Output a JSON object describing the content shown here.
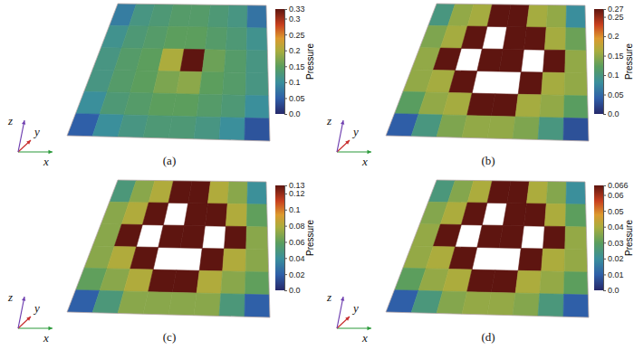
{
  "chart_data": [
    {
      "type": "heatmap",
      "title": "(a)",
      "xlabel": "x",
      "ylabel": "y",
      "zlabel": "z",
      "cells": [
        [
          0.08,
          0.12,
          0.13,
          0.14,
          0.14,
          0.13,
          0.12,
          0.07
        ],
        [
          0.11,
          0.13,
          0.14,
          0.15,
          0.15,
          0.14,
          0.13,
          0.11
        ],
        [
          0.12,
          0.14,
          0.15,
          0.2,
          0.33,
          0.16,
          0.14,
          0.12
        ],
        [
          0.12,
          0.14,
          0.15,
          0.17,
          0.18,
          0.15,
          0.14,
          0.12
        ],
        [
          0.1,
          0.13,
          0.14,
          0.15,
          0.15,
          0.14,
          0.13,
          0.1
        ],
        [
          0.05,
          0.1,
          0.12,
          0.13,
          0.13,
          0.12,
          0.1,
          0.04
        ]
      ],
      "colorbar": {
        "label": "Pressure",
        "range": [
          0,
          0.33
        ],
        "ticks": [
          {
            "value": 0,
            "label": "0.0"
          },
          0.05,
          0.1,
          0.15,
          0.2,
          0.25,
          0.3,
          0.33
        ]
      }
    },
    {
      "type": "heatmap",
      "title": "(b)",
      "xlabel": "x",
      "ylabel": "y",
      "zlabel": "z",
      "cells": [
        [
          0.1,
          0.15,
          0.16,
          0.27,
          0.27,
          0.16,
          0.15,
          0.08
        ],
        [
          0.14,
          0.16,
          0.27,
          null,
          0.27,
          0.27,
          0.16,
          0.13
        ],
        [
          0.15,
          0.27,
          null,
          0.27,
          0.27,
          null,
          0.27,
          0.15
        ],
        [
          0.15,
          0.16,
          0.27,
          null,
          null,
          0.27,
          0.16,
          0.15
        ],
        [
          0.12,
          0.15,
          0.16,
          0.27,
          0.27,
          0.16,
          0.15,
          0.12
        ],
        [
          0.04,
          0.1,
          0.14,
          0.15,
          0.15,
          0.14,
          0.1,
          0.03
        ]
      ],
      "colorbar": {
        "label": "Pressure",
        "range": [
          0,
          0.27
        ],
        "ticks": [
          {
            "value": 0,
            "label": "0.0"
          },
          0.05,
          0.1,
          0.15,
          0.2,
          0.25,
          0.27
        ]
      }
    },
    {
      "type": "heatmap",
      "title": "(c)",
      "xlabel": "x",
      "ylabel": "y",
      "zlabel": "z",
      "cells": [
        [
          0.05,
          0.07,
          0.08,
          0.13,
          0.13,
          0.08,
          0.07,
          0.04
        ],
        [
          0.07,
          0.08,
          0.13,
          null,
          0.13,
          0.13,
          0.08,
          0.06
        ],
        [
          0.07,
          0.13,
          null,
          0.13,
          0.13,
          null,
          0.13,
          0.07
        ],
        [
          0.07,
          0.08,
          0.13,
          null,
          null,
          0.13,
          0.08,
          0.07
        ],
        [
          0.06,
          0.07,
          0.08,
          0.13,
          0.13,
          0.08,
          0.07,
          0.06
        ],
        [
          0.02,
          0.05,
          0.07,
          0.07,
          0.07,
          0.07,
          0.05,
          0.02
        ]
      ],
      "colorbar": {
        "label": "Pressure",
        "range": [
          0,
          0.13
        ],
        "ticks": [
          {
            "value": 0,
            "label": "0.0"
          },
          0.02,
          0.04,
          0.06,
          0.08,
          0.1,
          0.12,
          0.13
        ]
      }
    },
    {
      "type": "heatmap",
      "title": "(d)",
      "xlabel": "x",
      "ylabel": "y",
      "zlabel": "z",
      "cells": [
        [
          0.025,
          0.035,
          0.04,
          0.066,
          0.066,
          0.04,
          0.035,
          0.02
        ],
        [
          0.035,
          0.04,
          0.066,
          null,
          0.066,
          0.066,
          0.04,
          0.03
        ],
        [
          0.037,
          0.066,
          null,
          0.066,
          0.066,
          null,
          0.066,
          0.037
        ],
        [
          0.037,
          0.04,
          0.066,
          null,
          null,
          0.066,
          0.04,
          0.037
        ],
        [
          0.03,
          0.037,
          0.04,
          0.066,
          0.066,
          0.04,
          0.037,
          0.03
        ],
        [
          0.01,
          0.025,
          0.035,
          0.037,
          0.037,
          0.035,
          0.025,
          0.01
        ]
      ],
      "colorbar": {
        "label": "Pressure",
        "range": [
          0,
          0.066
        ],
        "ticks": [
          {
            "value": 0,
            "label": "0.0"
          },
          0.01,
          0.02,
          0.03,
          0.04,
          0.05,
          0.06,
          0.066
        ]
      }
    }
  ]
}
